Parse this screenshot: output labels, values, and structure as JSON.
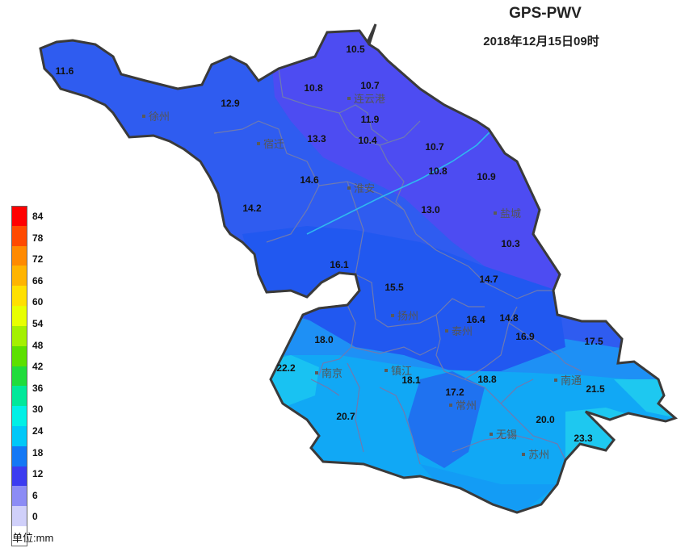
{
  "title": "GPS-PWV",
  "subtitle": "2018年12月15日09时",
  "unit_label": "单位:mm",
  "legend": {
    "ticks": [
      "84",
      "78",
      "72",
      "66",
      "60",
      "54",
      "48",
      "42",
      "36",
      "30",
      "24",
      "18",
      "12",
      "6",
      "0"
    ],
    "colors": [
      "#ff0000",
      "#ff4a00",
      "#ff8a00",
      "#ffb400",
      "#ffe000",
      "#e8ff00",
      "#a4f000",
      "#5ce000",
      "#20dc3c",
      "#00e89a",
      "#00f0e6",
      "#00c8f8",
      "#1478f5",
      "#3c3cf0",
      "#8c8cf5",
      "#d0d0fa",
      "#ffffff"
    ]
  },
  "cities": [
    {
      "name": "徐州"
    },
    {
      "name": "连云港"
    },
    {
      "name": "宿迁"
    },
    {
      "name": "淮安"
    },
    {
      "name": "盐城"
    },
    {
      "name": "扬州"
    },
    {
      "name": "泰州"
    },
    {
      "name": "南京"
    },
    {
      "name": "镇江"
    },
    {
      "name": "南通"
    },
    {
      "name": "常州"
    },
    {
      "name": "无锡"
    },
    {
      "name": "苏州"
    }
  ],
  "stations": [
    {
      "value": "11.6"
    },
    {
      "value": "12.9"
    },
    {
      "value": "10.8"
    },
    {
      "value": "10.7"
    },
    {
      "value": "10.5"
    },
    {
      "value": "11.9"
    },
    {
      "value": "13.3"
    },
    {
      "value": "10.4"
    },
    {
      "value": "10.7"
    },
    {
      "value": "10.8"
    },
    {
      "value": "10.9"
    },
    {
      "value": "14.6"
    },
    {
      "value": "14.2"
    },
    {
      "value": "13.0"
    },
    {
      "value": "10.3"
    },
    {
      "value": "16.1"
    },
    {
      "value": "15.5"
    },
    {
      "value": "14.7"
    },
    {
      "value": "16.4"
    },
    {
      "value": "14.8"
    },
    {
      "value": "16.9"
    },
    {
      "value": "17.5"
    },
    {
      "value": "18.0"
    },
    {
      "value": "22.2"
    },
    {
      "value": "18.1"
    },
    {
      "value": "18.8"
    },
    {
      "value": "17.2"
    },
    {
      "value": "21.5"
    },
    {
      "value": "20.7"
    },
    {
      "value": "20.0"
    },
    {
      "value": "23.3"
    }
  ]
}
